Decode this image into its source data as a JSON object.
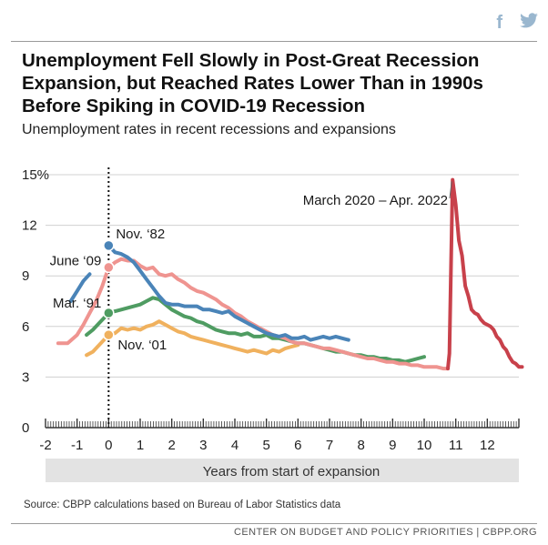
{
  "share": {
    "facebook_icon": "f",
    "twitter_icon": "❄"
  },
  "title": "Unemployment Fell Slowly in Post-Great Recession Expansion, but Reached Rates Lower Than in 1990s Before Spiking in COVID-19 Recession",
  "subtitle": "Unemployment rates in recent recessions and expansions",
  "chart_data": {
    "type": "line",
    "xlabel": "Years from start of expansion",
    "ylabel": "",
    "xlim": [
      -2,
      13
    ],
    "ylim": [
      0,
      15
    ],
    "x_ticks": [
      -2,
      -1,
      0,
      1,
      2,
      3,
      4,
      5,
      6,
      7,
      8,
      9,
      10,
      11,
      12
    ],
    "x_tick_labels": [
      "-2",
      "-1",
      "0",
      "1",
      "2",
      "3",
      "4",
      "5",
      "6",
      "7",
      "8",
      "9",
      "10",
      "11",
      "12"
    ],
    "y_ticks": [
      0,
      3,
      6,
      9,
      12,
      15
    ],
    "y_tick_labels": [
      "0",
      "3",
      "6",
      "9",
      "12",
      "15%"
    ],
    "grid": true,
    "colors": {
      "nov82": "#4a84b8",
      "jun09": "#ef9490",
      "mar91": "#4f9c62",
      "nov01": "#f0b15e",
      "covid": "#c8414b",
      "grid": "#d0d0d0",
      "xlabel_band": "#e3e3e3"
    },
    "series": [
      {
        "key": "nov01",
        "name": "Nov. '01",
        "label_text": "Nov. ‘01",
        "color": "#f0b15e",
        "marker": [
          0,
          5.5
        ],
        "points": [
          [
            -0.7,
            4.3
          ],
          [
            -0.5,
            4.5
          ],
          [
            -0.3,
            4.9
          ],
          [
            -0.1,
            5.3
          ],
          [
            0,
            5.5
          ],
          [
            0.2,
            5.6
          ],
          [
            0.4,
            5.9
          ],
          [
            0.6,
            5.8
          ],
          [
            0.8,
            5.9
          ],
          [
            1.0,
            5.8
          ],
          [
            1.2,
            6.0
          ],
          [
            1.4,
            6.1
          ],
          [
            1.6,
            6.3
          ],
          [
            1.8,
            6.1
          ],
          [
            2.0,
            5.9
          ],
          [
            2.2,
            5.7
          ],
          [
            2.4,
            5.6
          ],
          [
            2.6,
            5.4
          ],
          [
            2.8,
            5.3
          ],
          [
            3.0,
            5.2
          ],
          [
            3.2,
            5.1
          ],
          [
            3.4,
            5.0
          ],
          [
            3.6,
            4.9
          ],
          [
            3.8,
            4.8
          ],
          [
            4.0,
            4.7
          ],
          [
            4.2,
            4.6
          ],
          [
            4.4,
            4.5
          ],
          [
            4.6,
            4.6
          ],
          [
            4.8,
            4.5
          ],
          [
            5.0,
            4.4
          ],
          [
            5.2,
            4.6
          ],
          [
            5.4,
            4.5
          ],
          [
            5.6,
            4.7
          ],
          [
            5.8,
            4.8
          ],
          [
            6.0,
            4.9
          ]
        ]
      },
      {
        "key": "mar91",
        "name": "Mar. '91",
        "label_text": "Mar. ‘91",
        "color": "#4f9c62",
        "marker": [
          0,
          6.8
        ],
        "points": [
          [
            -0.7,
            5.5
          ],
          [
            -0.5,
            5.8
          ],
          [
            -0.3,
            6.2
          ],
          [
            -0.1,
            6.6
          ],
          [
            0,
            6.8
          ],
          [
            0.2,
            6.9
          ],
          [
            0.4,
            7.0
          ],
          [
            0.6,
            7.1
          ],
          [
            0.8,
            7.2
          ],
          [
            1.0,
            7.3
          ],
          [
            1.2,
            7.5
          ],
          [
            1.4,
            7.7
          ],
          [
            1.6,
            7.6
          ],
          [
            1.8,
            7.3
          ],
          [
            2.0,
            7.0
          ],
          [
            2.2,
            6.8
          ],
          [
            2.4,
            6.6
          ],
          [
            2.6,
            6.5
          ],
          [
            2.8,
            6.3
          ],
          [
            3.0,
            6.2
          ],
          [
            3.2,
            6.0
          ],
          [
            3.4,
            5.8
          ],
          [
            3.6,
            5.7
          ],
          [
            3.8,
            5.6
          ],
          [
            4.0,
            5.6
          ],
          [
            4.2,
            5.5
          ],
          [
            4.4,
            5.6
          ],
          [
            4.6,
            5.4
          ],
          [
            4.8,
            5.4
          ],
          [
            5.0,
            5.5
          ],
          [
            5.2,
            5.3
          ],
          [
            5.4,
            5.3
          ],
          [
            5.6,
            5.2
          ],
          [
            5.8,
            5.1
          ],
          [
            6.0,
            5.0
          ],
          [
            6.2,
            5.0
          ],
          [
            6.4,
            4.9
          ],
          [
            6.6,
            4.8
          ],
          [
            6.8,
            4.7
          ],
          [
            7.0,
            4.6
          ],
          [
            7.2,
            4.5
          ],
          [
            7.4,
            4.5
          ],
          [
            7.6,
            4.4
          ],
          [
            7.8,
            4.3
          ],
          [
            8.0,
            4.3
          ],
          [
            8.2,
            4.2
          ],
          [
            8.4,
            4.2
          ],
          [
            8.6,
            4.1
          ],
          [
            8.8,
            4.1
          ],
          [
            9.0,
            4.0
          ],
          [
            9.2,
            4.0
          ],
          [
            9.4,
            3.9
          ],
          [
            9.6,
            4.0
          ],
          [
            9.8,
            4.1
          ],
          [
            10.0,
            4.2
          ]
        ]
      },
      {
        "key": "jun09",
        "name": "June '09",
        "label_text": "June ‘09",
        "color": "#ef9490",
        "marker": [
          0,
          9.5
        ],
        "points": [
          [
            -1.6,
            5.0
          ],
          [
            -1.3,
            5.0
          ],
          [
            -1.0,
            5.5
          ],
          [
            -0.8,
            6.1
          ],
          [
            -0.6,
            6.8
          ],
          [
            -0.4,
            7.5
          ],
          [
            -0.2,
            8.4
          ],
          [
            0,
            9.5
          ],
          [
            0.2,
            9.8
          ],
          [
            0.4,
            10.0
          ],
          [
            0.6,
            9.9
          ],
          [
            0.8,
            9.9
          ],
          [
            1.0,
            9.6
          ],
          [
            1.2,
            9.4
          ],
          [
            1.4,
            9.5
          ],
          [
            1.6,
            9.1
          ],
          [
            1.8,
            9.0
          ],
          [
            2.0,
            9.1
          ],
          [
            2.2,
            8.8
          ],
          [
            2.4,
            8.6
          ],
          [
            2.6,
            8.3
          ],
          [
            2.8,
            8.1
          ],
          [
            3.0,
            8.0
          ],
          [
            3.2,
            7.8
          ],
          [
            3.4,
            7.6
          ],
          [
            3.6,
            7.3
          ],
          [
            3.8,
            7.1
          ],
          [
            4.0,
            6.8
          ],
          [
            4.2,
            6.6
          ],
          [
            4.4,
            6.3
          ],
          [
            4.6,
            6.1
          ],
          [
            4.8,
            5.9
          ],
          [
            5.0,
            5.7
          ],
          [
            5.2,
            5.5
          ],
          [
            5.4,
            5.4
          ],
          [
            5.6,
            5.3
          ],
          [
            5.8,
            5.1
          ],
          [
            6.0,
            5.0
          ],
          [
            6.2,
            5.0
          ],
          [
            6.4,
            4.9
          ],
          [
            6.6,
            4.8
          ],
          [
            6.8,
            4.7
          ],
          [
            7.0,
            4.7
          ],
          [
            7.2,
            4.6
          ],
          [
            7.4,
            4.5
          ],
          [
            7.6,
            4.4
          ],
          [
            7.8,
            4.3
          ],
          [
            8.0,
            4.2
          ],
          [
            8.2,
            4.1
          ],
          [
            8.4,
            4.1
          ],
          [
            8.6,
            4.0
          ],
          [
            8.8,
            3.9
          ],
          [
            9.0,
            3.9
          ],
          [
            9.2,
            3.8
          ],
          [
            9.4,
            3.8
          ],
          [
            9.6,
            3.7
          ],
          [
            9.8,
            3.7
          ],
          [
            10.0,
            3.6
          ],
          [
            10.2,
            3.6
          ],
          [
            10.4,
            3.6
          ],
          [
            10.6,
            3.5
          ],
          [
            10.75,
            3.5
          ]
        ]
      },
      {
        "key": "nov82",
        "name": "Nov. '82",
        "label_text": "Nov. ‘82",
        "color": "#4a84b8",
        "marker": [
          0,
          10.8
        ],
        "points": [
          [
            -1.2,
            7.5
          ],
          [
            -1.0,
            8.1
          ],
          [
            -0.8,
            8.7
          ],
          [
            -0.6,
            9.1
          ],
          [
            -0.6,
            null
          ],
          [
            0,
            10.8
          ],
          [
            0.2,
            10.4
          ],
          [
            0.4,
            10.3
          ],
          [
            0.6,
            10.1
          ],
          [
            0.8,
            9.8
          ],
          [
            1.0,
            9.3
          ],
          [
            1.2,
            8.8
          ],
          [
            1.4,
            8.3
          ],
          [
            1.6,
            7.8
          ],
          [
            1.8,
            7.4
          ],
          [
            2.0,
            7.3
          ],
          [
            2.2,
            7.3
          ],
          [
            2.4,
            7.2
          ],
          [
            2.6,
            7.2
          ],
          [
            2.8,
            7.2
          ],
          [
            3.0,
            7.0
          ],
          [
            3.2,
            7.0
          ],
          [
            3.4,
            6.9
          ],
          [
            3.6,
            6.8
          ],
          [
            3.8,
            6.9
          ],
          [
            4.0,
            6.6
          ],
          [
            4.2,
            6.4
          ],
          [
            4.4,
            6.2
          ],
          [
            4.6,
            6.0
          ],
          [
            4.8,
            5.8
          ],
          [
            5.0,
            5.6
          ],
          [
            5.2,
            5.5
          ],
          [
            5.4,
            5.4
          ],
          [
            5.6,
            5.5
          ],
          [
            5.8,
            5.3
          ],
          [
            6.0,
            5.3
          ],
          [
            6.2,
            5.4
          ],
          [
            6.4,
            5.2
          ],
          [
            6.6,
            5.3
          ],
          [
            6.8,
            5.4
          ],
          [
            7.0,
            5.3
          ],
          [
            7.2,
            5.4
          ],
          [
            7.4,
            5.3
          ],
          [
            7.6,
            5.2
          ]
        ]
      },
      {
        "key": "covid",
        "name": "March 2020 – Apr. 2022",
        "label_text": "March 2020 – Apr. 2022",
        "color": "#c8414b",
        "marker": null,
        "points": [
          [
            10.75,
            3.5
          ],
          [
            10.8,
            4.4
          ],
          [
            10.9,
            14.7
          ],
          [
            11.0,
            13.2
          ],
          [
            11.1,
            11.1
          ],
          [
            11.2,
            10.2
          ],
          [
            11.3,
            8.4
          ],
          [
            11.4,
            7.8
          ],
          [
            11.5,
            7.0
          ],
          [
            11.6,
            6.8
          ],
          [
            11.7,
            6.7
          ],
          [
            11.8,
            6.4
          ],
          [
            11.9,
            6.2
          ],
          [
            12.0,
            6.1
          ],
          [
            12.1,
            6.0
          ],
          [
            12.2,
            5.8
          ],
          [
            12.3,
            5.4
          ],
          [
            12.4,
            5.2
          ],
          [
            12.5,
            4.8
          ],
          [
            12.6,
            4.6
          ],
          [
            12.7,
            4.2
          ],
          [
            12.8,
            3.9
          ],
          [
            12.9,
            3.8
          ],
          [
            13.0,
            3.6
          ],
          [
            13.1,
            3.6
          ]
        ]
      }
    ]
  },
  "source": "Source: CBPP calculations based on Bureau of Labor Statistics data",
  "credit": "CENTER ON BUDGET AND POLICY PRIORITIES | CBPP.ORG"
}
